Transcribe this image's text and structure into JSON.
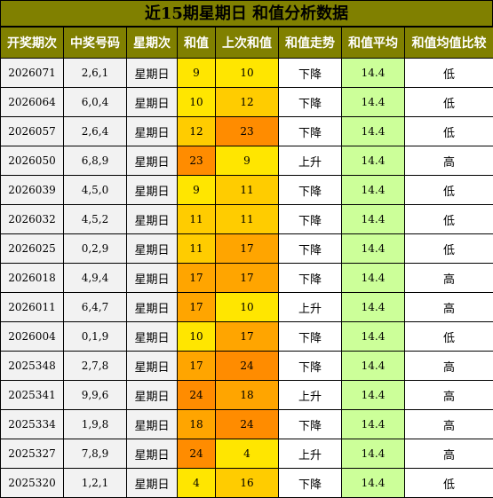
{
  "title": "近15期星期日 和值分析数据",
  "columns": [
    "开奖期次",
    "中奖号码",
    "星期次",
    "和值",
    "上次和值",
    "和值走势",
    "和值平均",
    "和值均值比较"
  ],
  "colors": {
    "header_bg": "#808000",
    "level_low": "#ffe600",
    "level_mid": "#ffcc00",
    "level_high": "#ffa500",
    "level_max": "#ff8c00",
    "avg_bg": "#ccff99"
  },
  "rows": [
    {
      "period": "2026071",
      "numbers": "2,6,1",
      "weekday": "星期日",
      "sum": "9",
      "prev_sum": "10",
      "trend": "下降",
      "avg": "14.4",
      "compare": "低"
    },
    {
      "period": "2026064",
      "numbers": "6,0,4",
      "weekday": "星期日",
      "sum": "10",
      "prev_sum": "12",
      "trend": "下降",
      "avg": "14.4",
      "compare": "低"
    },
    {
      "period": "2026057",
      "numbers": "2,6,4",
      "weekday": "星期日",
      "sum": "12",
      "prev_sum": "23",
      "trend": "下降",
      "avg": "14.4",
      "compare": "低"
    },
    {
      "period": "2026050",
      "numbers": "6,8,9",
      "weekday": "星期日",
      "sum": "23",
      "prev_sum": "9",
      "trend": "上升",
      "avg": "14.4",
      "compare": "高"
    },
    {
      "period": "2026039",
      "numbers": "4,5,0",
      "weekday": "星期日",
      "sum": "9",
      "prev_sum": "11",
      "trend": "下降",
      "avg": "14.4",
      "compare": "低"
    },
    {
      "period": "2026032",
      "numbers": "4,5,2",
      "weekday": "星期日",
      "sum": "11",
      "prev_sum": "11",
      "trend": "下降",
      "avg": "14.4",
      "compare": "低"
    },
    {
      "period": "2026025",
      "numbers": "0,2,9",
      "weekday": "星期日",
      "sum": "11",
      "prev_sum": "17",
      "trend": "下降",
      "avg": "14.4",
      "compare": "低"
    },
    {
      "period": "2026018",
      "numbers": "4,9,4",
      "weekday": "星期日",
      "sum": "17",
      "prev_sum": "17",
      "trend": "下降",
      "avg": "14.4",
      "compare": "高"
    },
    {
      "period": "2026011",
      "numbers": "6,4,7",
      "weekday": "星期日",
      "sum": "17",
      "prev_sum": "10",
      "trend": "上升",
      "avg": "14.4",
      "compare": "高"
    },
    {
      "period": "2026004",
      "numbers": "0,1,9",
      "weekday": "星期日",
      "sum": "10",
      "prev_sum": "17",
      "trend": "下降",
      "avg": "14.4",
      "compare": "低"
    },
    {
      "period": "2025348",
      "numbers": "2,7,8",
      "weekday": "星期日",
      "sum": "17",
      "prev_sum": "24",
      "trend": "下降",
      "avg": "14.4",
      "compare": "高"
    },
    {
      "period": "2025341",
      "numbers": "9,9,6",
      "weekday": "星期日",
      "sum": "24",
      "prev_sum": "18",
      "trend": "上升",
      "avg": "14.4",
      "compare": "高"
    },
    {
      "period": "2025334",
      "numbers": "1,9,8",
      "weekday": "星期日",
      "sum": "18",
      "prev_sum": "24",
      "trend": "下降",
      "avg": "14.4",
      "compare": "高"
    },
    {
      "period": "2025327",
      "numbers": "7,8,9",
      "weekday": "星期日",
      "sum": "24",
      "prev_sum": "4",
      "trend": "上升",
      "avg": "14.4",
      "compare": "高"
    },
    {
      "period": "2025320",
      "numbers": "1,2,1",
      "weekday": "星期日",
      "sum": "4",
      "prev_sum": "16",
      "trend": "下降",
      "avg": "14.4",
      "compare": "低"
    }
  ]
}
